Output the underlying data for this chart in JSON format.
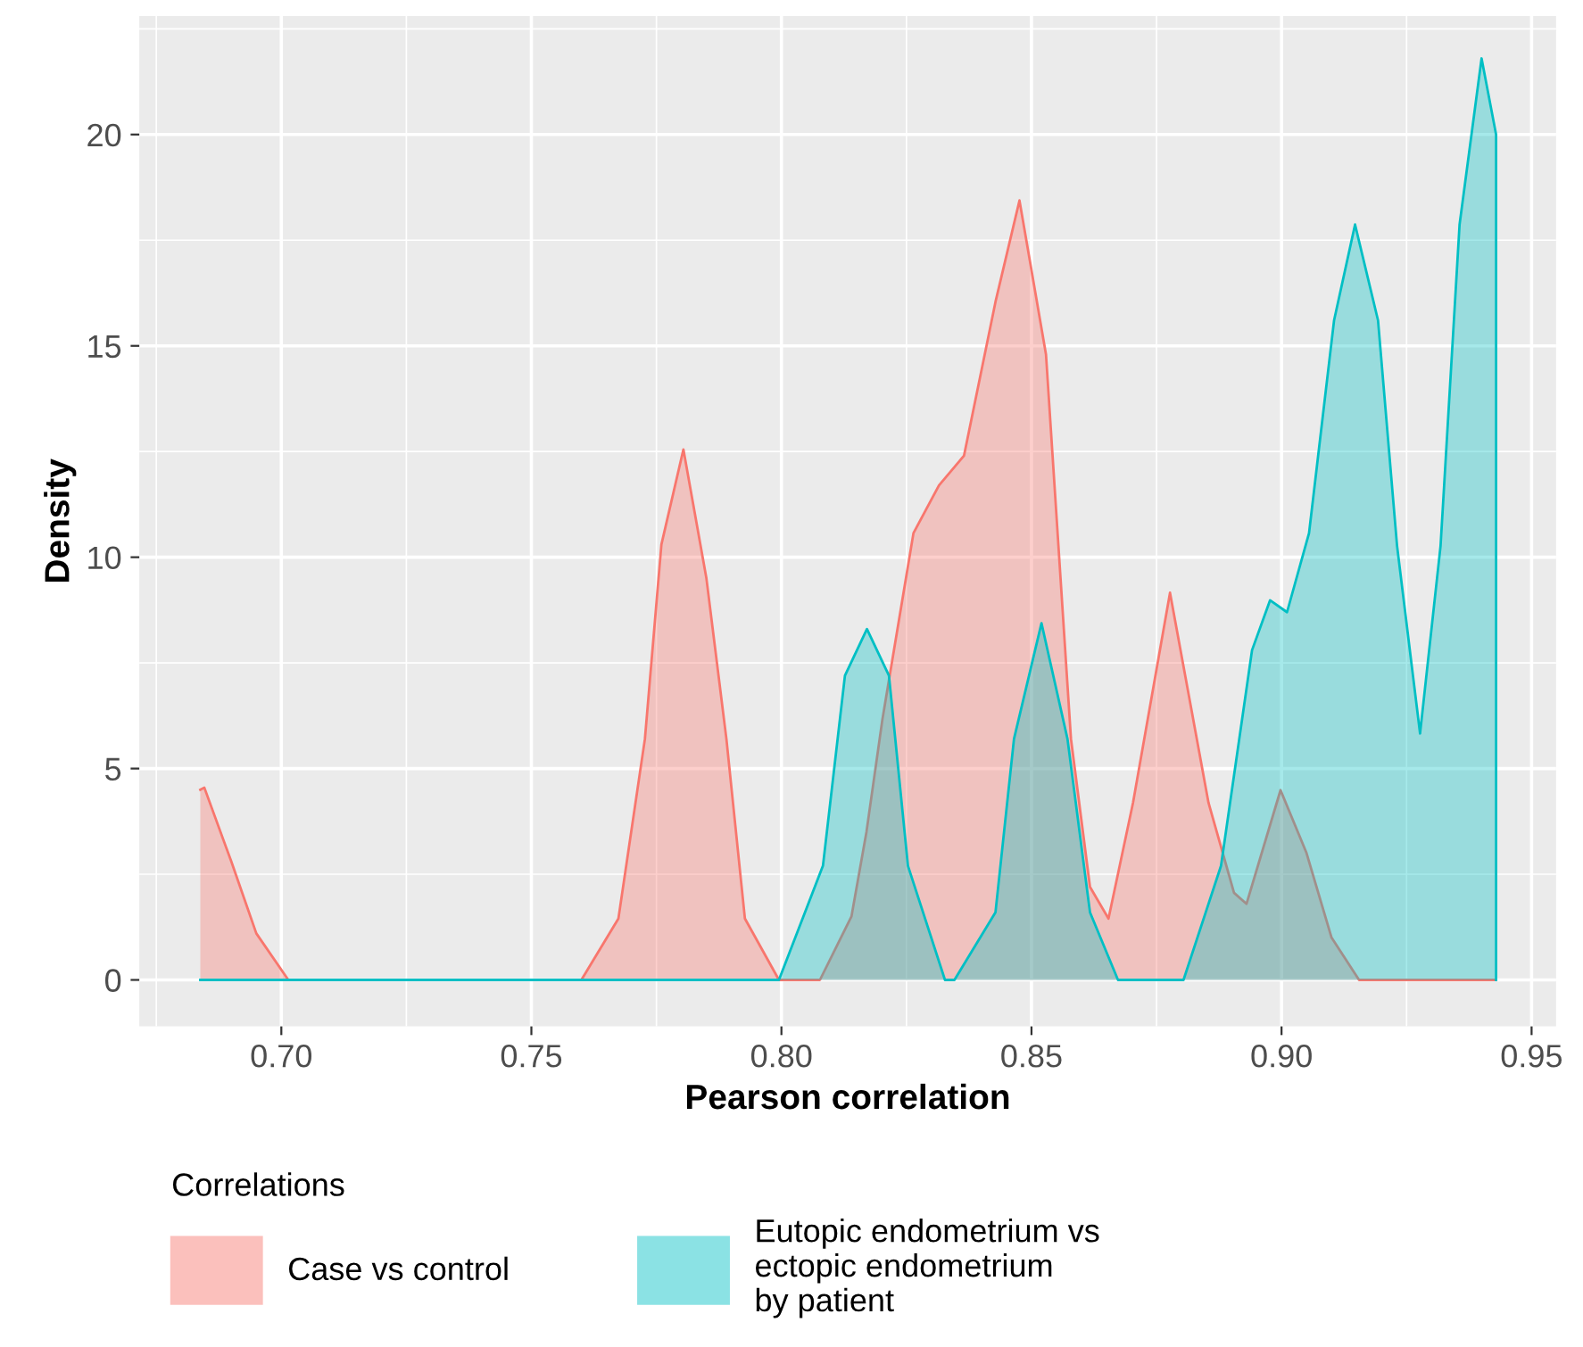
{
  "chart_data": {
    "type": "area",
    "xlabel": "Pearson correlation",
    "ylabel": "Density",
    "legend_title": "Correlations",
    "legend": "bottom",
    "grid": true,
    "xlim": [
      0.6716,
      0.9549
    ],
    "ylim": [
      -1.1,
      22.8
    ],
    "xticks": [
      {
        "value": 0.7,
        "label": "0.70"
      },
      {
        "value": 0.75,
        "label": "0.75"
      },
      {
        "value": 0.8,
        "label": "0.80"
      },
      {
        "value": 0.85,
        "label": "0.85"
      },
      {
        "value": 0.9,
        "label": "0.90"
      },
      {
        "value": 0.95,
        "label": "0.95"
      }
    ],
    "yticks": [
      0,
      5,
      10,
      15,
      20
    ],
    "series": [
      {
        "name": "Case vs control",
        "color": "#f8766d",
        "x": [
          0.6838,
          0.6846,
          0.69,
          0.695,
          0.7014,
          0.76,
          0.7674,
          0.7727,
          0.776,
          0.7804,
          0.785,
          0.789,
          0.7927,
          0.7995,
          0.8077,
          0.814,
          0.817,
          0.8202,
          0.8264,
          0.8315,
          0.8365,
          0.8428,
          0.8476,
          0.8529,
          0.8579,
          0.8617,
          0.8654,
          0.8703,
          0.8777,
          0.8854,
          0.8905,
          0.893,
          0.8998,
          0.905,
          0.91,
          0.9155,
          0.9429
        ],
        "values": [
          4.5,
          4.55,
          2.8,
          1.1,
          0,
          0,
          1.45,
          5.7,
          10.3,
          12.55,
          9.5,
          5.7,
          1.45,
          0,
          0,
          1.5,
          3.5,
          6.17,
          10.57,
          11.7,
          12.4,
          16.04,
          18.44,
          14.8,
          5.7,
          2.2,
          1.45,
          4.19,
          9.16,
          4.19,
          2.06,
          1.8,
          4.49,
          3.0,
          1.0,
          0,
          0
        ]
      },
      {
        "name": "Eutopic endometrium vs\nectopic endometrium\nby patient",
        "color": "#00bfc4",
        "x": [
          0.6838,
          0.7995,
          0.8083,
          0.8127,
          0.8171,
          0.8215,
          0.8253,
          0.8327,
          0.8346,
          0.8428,
          0.8465,
          0.852,
          0.8572,
          0.8617,
          0.8673,
          0.8804,
          0.8879,
          0.8941,
          0.8977,
          0.9011,
          0.9055,
          0.9105,
          0.9147,
          0.9193,
          0.9231,
          0.9277,
          0.9318,
          0.9356,
          0.94,
          0.9429,
          0.9429
        ],
        "values": [
          0,
          0,
          2.7,
          7.2,
          8.3,
          7.2,
          2.7,
          0,
          0,
          1.6,
          5.7,
          8.44,
          5.7,
          1.6,
          0,
          0,
          2.7,
          7.8,
          8.98,
          8.7,
          10.57,
          15.6,
          17.87,
          15.6,
          10.27,
          5.83,
          10.27,
          17.87,
          21.8,
          20,
          0
        ]
      }
    ]
  }
}
